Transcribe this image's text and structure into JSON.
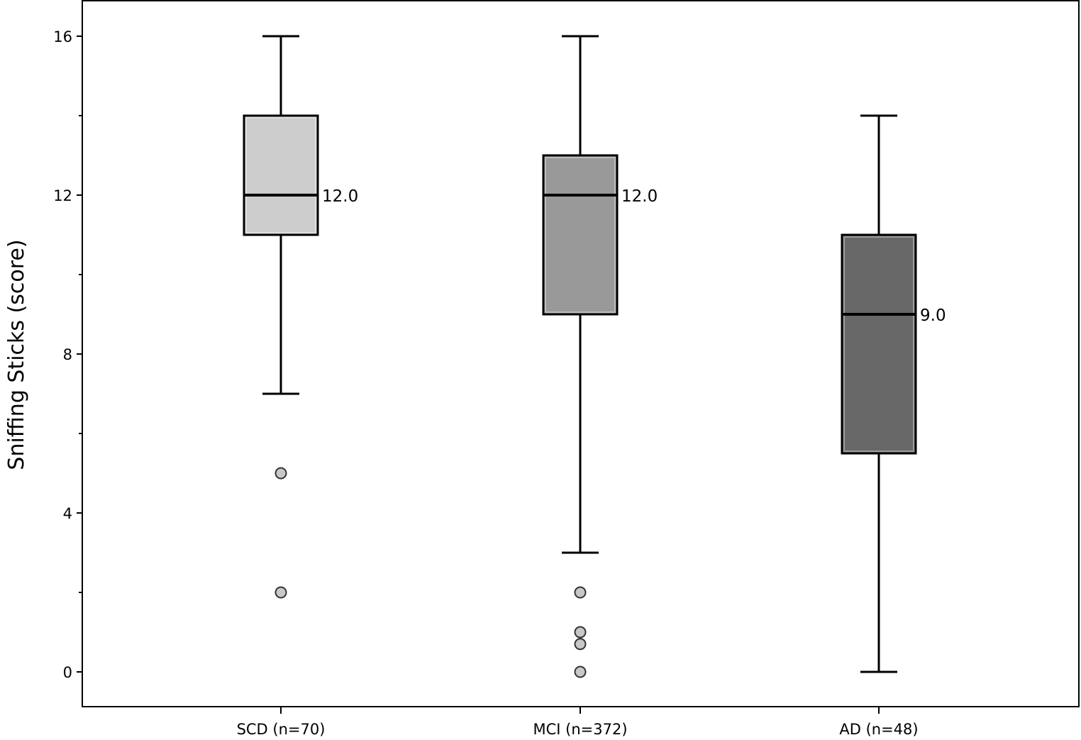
{
  "chart_data": {
    "type": "boxplot",
    "ylabel": "Sniffing Sticks (score)",
    "xlabel": "",
    "ylim": [
      -0.9,
      16.9
    ],
    "yticks": [
      0,
      4,
      8,
      12,
      16
    ],
    "grid": false,
    "categories": [
      "SCD (n=70)",
      "MCI (n=372)",
      "AD (n=48)"
    ],
    "boxes": [
      {
        "category": "SCD (n=70)",
        "whisker_low": 7,
        "q1": 11,
        "median": 12,
        "q3": 14,
        "whisker_high": 16,
        "median_label": "12.0",
        "outliers": [
          5,
          2
        ],
        "color": "#cccccc"
      },
      {
        "category": "MCI (n=372)",
        "whisker_low": 3,
        "q1": 9,
        "median": 12,
        "q3": 13,
        "whisker_high": 16,
        "median_label": "12.0",
        "outliers": [
          2,
          1,
          0.7,
          0
        ],
        "color": "#999999"
      },
      {
        "category": "AD (n=48)",
        "whisker_low": 0,
        "q1": 5.5,
        "median": 9,
        "q3": 11,
        "whisker_high": 14,
        "median_label": "9.0",
        "outliers": [],
        "color": "#686868"
      }
    ]
  }
}
